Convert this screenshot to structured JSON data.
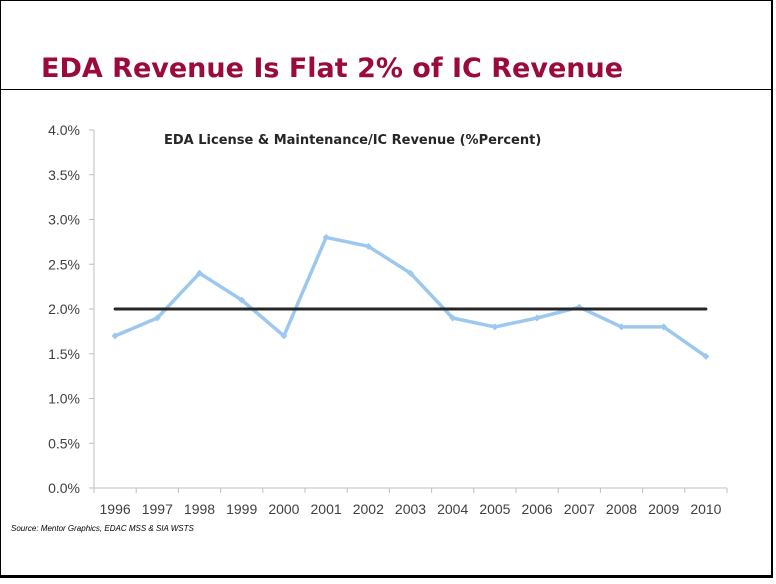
{
  "slide": {
    "title": "EDA Revenue Is Flat 2% of IC Revenue",
    "source": "Source:  Mentor Graphics, EDAC MSS & SIA WSTS"
  },
  "chart_data": {
    "type": "line",
    "title": "EDA License & Maintenance/IC Revenue (%Percent)",
    "xlabel": "",
    "ylabel": "",
    "categories": [
      "1996",
      "1997",
      "1998",
      "1999",
      "2000",
      "2001",
      "2002",
      "2003",
      "2004",
      "2005",
      "2006",
      "2007",
      "2008",
      "2009",
      "2010"
    ],
    "ylim": [
      0,
      4.0
    ],
    "yticks": [
      0,
      0.5,
      1.0,
      1.5,
      2.0,
      2.5,
      3.0,
      3.5,
      4.0
    ],
    "ytick_labels": [
      "0.0%",
      "0.5%",
      "1.0%",
      "1.5%",
      "2.0%",
      "2.5%",
      "3.0%",
      "3.5%",
      "4.0%"
    ],
    "series": [
      {
        "values": [
          1.7,
          1.9,
          2.4,
          2.1,
          1.7,
          2.8,
          2.7,
          2.4,
          1.9,
          1.8,
          1.9,
          2.02,
          1.8,
          1.8,
          1.47
        ],
        "color": "#9cc8f0",
        "markers": "diamond"
      },
      {
        "values": [
          2.0,
          2.0,
          2.0,
          2.0,
          2.0,
          2.0,
          2.0,
          2.0,
          2.0,
          2.0,
          2.0,
          2.0,
          2.0,
          2.0,
          2.0
        ],
        "color": "#262626",
        "markers": "none"
      }
    ],
    "grid": false,
    "legend": "none"
  }
}
